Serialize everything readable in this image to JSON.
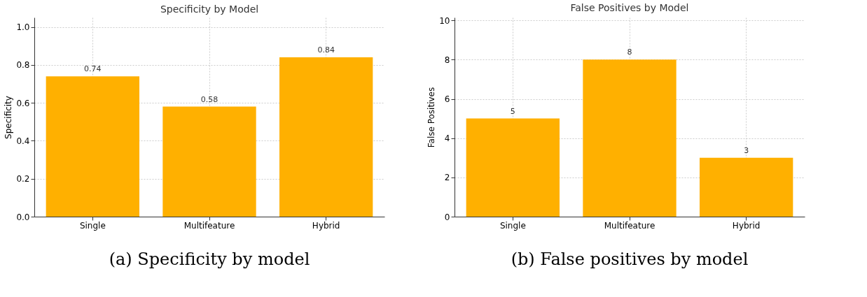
{
  "chart_data": [
    {
      "type": "bar",
      "title": "Specificity by Model",
      "categories": [
        "Single",
        "Multifeature",
        "Hybrid"
      ],
      "values": [
        0.74,
        0.58,
        0.84
      ],
      "color": "#ffb000",
      "ylabel": "Specificity",
      "ylim": [
        0,
        1.05
      ],
      "yticks": [
        {
          "value": 0,
          "label": "0.0"
        },
        0.2,
        0.4,
        0.6,
        0.8,
        {
          "value": 1,
          "label": "1.0"
        }
      ],
      "grid": true,
      "data_labels": true,
      "annotations": [
        "(a) Specificity by model"
      ]
    },
    {
      "type": "bar",
      "title": "False Positives by Model",
      "categories": [
        "Single",
        "Multifeature",
        "Hybrid"
      ],
      "values": [
        5,
        8,
        3
      ],
      "color": "#ffb000",
      "ylabel": "False Positives",
      "ylim": [
        0,
        10.15
      ],
      "yticks": [
        0,
        2,
        4,
        6,
        8,
        10
      ],
      "grid": true,
      "data_labels": true,
      "annotations": [
        "(b) False positives by model"
      ]
    }
  ]
}
